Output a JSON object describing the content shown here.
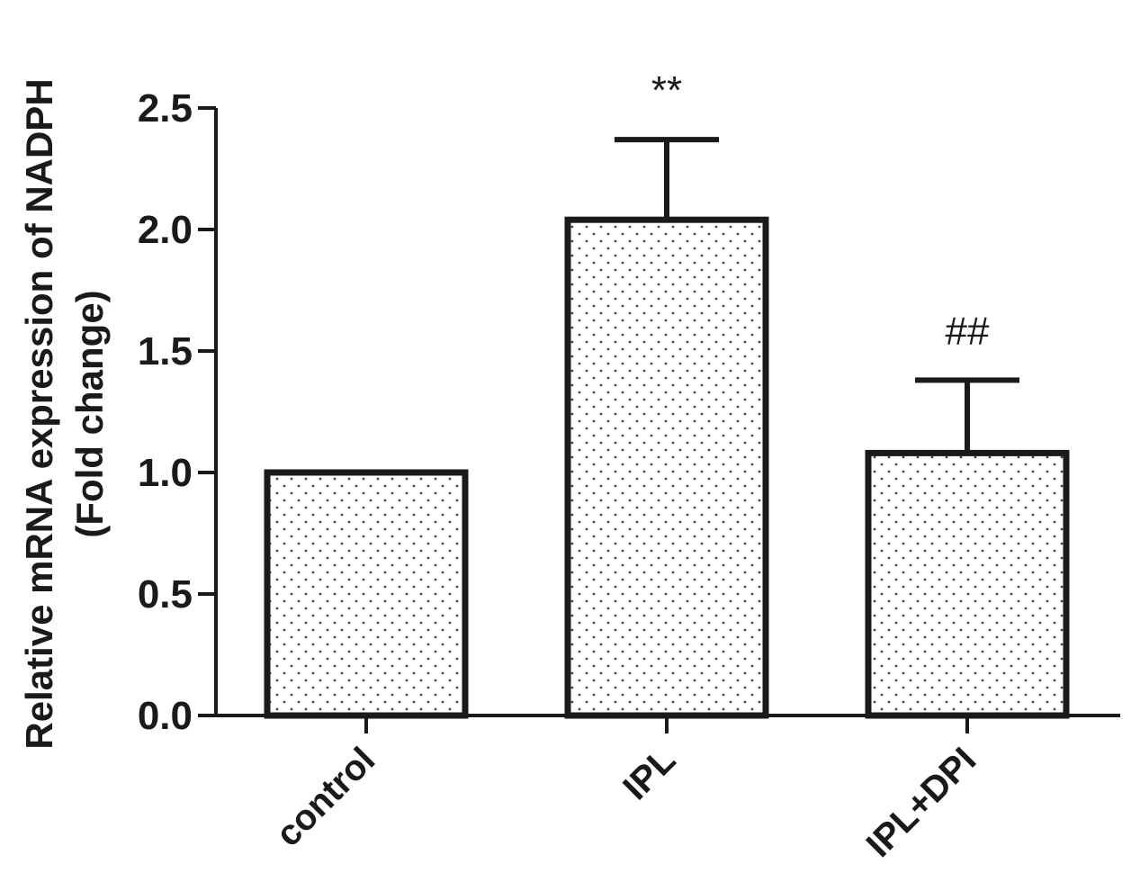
{
  "chart_data": {
    "type": "bar",
    "categories": [
      "control",
      "IPL",
      "IPL+DPI"
    ],
    "values": [
      1.0,
      2.04,
      1.08
    ],
    "errors": [
      0.0,
      0.33,
      0.3
    ],
    "annotations": [
      "",
      "**",
      "##"
    ],
    "ylabel_line1": "Relative  mRNA expression of NADPH",
    "ylabel_line2": "(Fold change)",
    "ylim": [
      0,
      2.5
    ],
    "yticks": [
      0.0,
      0.5,
      1.0,
      1.5,
      2.0,
      2.5
    ],
    "ytick_labels": [
      "0.0",
      "0.5",
      "1.0",
      "1.5",
      "2.0",
      "2.5"
    ],
    "bar_fill": "dotted",
    "colors": {
      "ink": "#1a1a1a",
      "fill": "#ffffff",
      "dots": "#444444"
    }
  }
}
